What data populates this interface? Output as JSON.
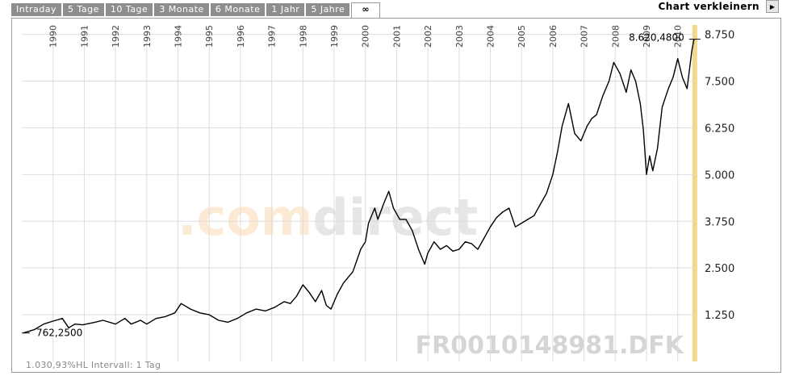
{
  "tabs": [
    {
      "label": "Intraday"
    },
    {
      "label": "5 Tage"
    },
    {
      "label": "10 Tage"
    },
    {
      "label": "3 Monate"
    },
    {
      "label": "6 Monate"
    },
    {
      "label": "1 Jahr"
    },
    {
      "label": "5 Jahre"
    },
    {
      "label": "∞"
    }
  ],
  "active_tab": "∞",
  "shrink_label": "Chart verkleinern",
  "watermark_logo": ".comdirect",
  "symbol_watermark": "FR0010148981.DFK",
  "footer_info": "1.030,93%HL  Intervall: 1 Tag",
  "colors": {
    "line": "#000000",
    "grid": "#dddddd",
    "highlight": "#f2d88a",
    "logo_orange": "#f7c68a",
    "logo_gray": "#b8b8b8",
    "tab_bg": "#8e8e8e"
  },
  "chart_data": {
    "type": "line",
    "x_tick_labels": [
      "1990",
      "1991",
      "1992",
      "1993",
      "1994",
      "1995",
      "1996",
      "1997",
      "1998",
      "1999",
      "2000",
      "2001",
      "2002",
      "2003",
      "2004",
      "2005",
      "2006",
      "2007",
      "2008",
      "2009",
      "2010"
    ],
    "y_tick_labels": [
      "1.250",
      "2.500",
      "3.750",
      "5.000",
      "6.250",
      "7.500",
      "8.750"
    ],
    "ylim": [
      0,
      9000
    ],
    "xlim": [
      1989.0,
      2010.55
    ],
    "grid": true,
    "start_label": "762,2500",
    "end_label": "8.620,4800",
    "series": [
      {
        "x": [
          1989.05,
          1989.4,
          1989.7,
          1990.0,
          1990.3,
          1990.5,
          1990.7,
          1990.95,
          1991.3,
          1991.6,
          1992.0,
          1992.3,
          1992.5,
          1992.8,
          1993.0,
          1993.3,
          1993.6,
          1993.9,
          1994.1,
          1994.4,
          1994.7,
          1995.0,
          1995.3,
          1995.6,
          1995.9,
          1996.2,
          1996.5,
          1996.8,
          1997.1,
          1997.4,
          1997.6,
          1997.8,
          1998.0,
          1998.2,
          1998.4,
          1998.6,
          1998.75,
          1998.9,
          1999.1,
          1999.3,
          1999.6,
          1999.85,
          2000.0,
          2000.1,
          2000.3,
          2000.4,
          2000.6,
          2000.75,
          2000.9,
          2001.1,
          2001.3,
          2001.5,
          2001.7,
          2001.9,
          2002.0,
          2002.2,
          2002.4,
          2002.6,
          2002.8,
          2003.0,
          2003.2,
          2003.4,
          2003.6,
          2003.8,
          2004.0,
          2004.2,
          2004.4,
          2004.6,
          2004.8,
          2005.0,
          2005.2,
          2005.4,
          2005.6,
          2005.8,
          2006.0,
          2006.15,
          2006.3,
          2006.5,
          2006.7,
          2006.9,
          2007.1,
          2007.25,
          2007.4,
          2007.6,
          2007.8,
          2007.95,
          2008.15,
          2008.35,
          2008.5,
          2008.65,
          2008.8,
          2008.9,
          2009.0,
          2009.1,
          2009.2,
          2009.35,
          2009.5,
          2009.7,
          2009.85,
          2010.0,
          2010.15,
          2010.3,
          2010.45,
          2010.52
        ],
        "values": [
          762,
          850,
          1000,
          1080,
          1150,
          900,
          1000,
          980,
          1040,
          1100,
          1000,
          1150,
          1000,
          1100,
          1000,
          1150,
          1200,
          1300,
          1550,
          1400,
          1300,
          1250,
          1100,
          1050,
          1150,
          1300,
          1400,
          1350,
          1450,
          1600,
          1550,
          1750,
          2050,
          1850,
          1600,
          1900,
          1500,
          1400,
          1800,
          2100,
          2400,
          3000,
          3200,
          3700,
          4100,
          3800,
          4250,
          4550,
          4100,
          3800,
          3800,
          3500,
          3000,
          2600,
          2900,
          3200,
          3000,
          3100,
          2950,
          3000,
          3200,
          3150,
          3000,
          3300,
          3600,
          3850,
          4000,
          4100,
          3600,
          3700,
          3800,
          3900,
          4200,
          4500,
          5000,
          5600,
          6300,
          6900,
          6100,
          5900,
          6300,
          6500,
          6600,
          7100,
          7500,
          8000,
          7700,
          7200,
          7800,
          7500,
          6900,
          6200,
          5000,
          5500,
          5100,
          5700,
          6800,
          7300,
          7600,
          8100,
          7600,
          7300,
          8300,
          8620
        ]
      }
    ]
  }
}
